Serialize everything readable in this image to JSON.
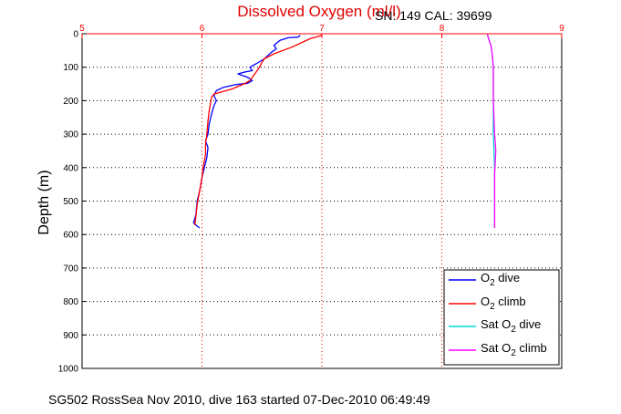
{
  "header": {
    "title": "Dissolved Oxygen (ml/l)",
    "title_color": "#e00000",
    "sn_cal": "SN: 149  CAL: 39699"
  },
  "footer": {
    "caption": "SG502 RossSea Nov 2010, dive 163 started 07-Dec-2010 06:49:49"
  },
  "chart_data": {
    "type": "line",
    "title": "Dissolved Oxygen (ml/l)",
    "ylabel": "Depth (m)",
    "xlim": [
      5,
      9
    ],
    "ylim": [
      0,
      1000
    ],
    "y_reversed": true,
    "x_axis_position": "top",
    "x_ticks": [
      5,
      6,
      7,
      8,
      9
    ],
    "y_ticks": [
      0,
      100,
      200,
      300,
      400,
      500,
      600,
      700,
      800,
      900,
      1000
    ],
    "grid": true,
    "legend_position": "bottom-right",
    "series": [
      {
        "name": "O2 dive",
        "legend_main": "O",
        "legend_sub": "2",
        "legend_suffix": " dive",
        "color": "#0000ff",
        "points": [
          [
            6.82,
            5
          ],
          [
            6.8,
            10
          ],
          [
            6.72,
            12
          ],
          [
            6.65,
            20
          ],
          [
            6.6,
            35
          ],
          [
            6.62,
            45
          ],
          [
            6.58,
            55
          ],
          [
            6.52,
            75
          ],
          [
            6.45,
            90
          ],
          [
            6.4,
            100
          ],
          [
            6.42,
            110
          ],
          [
            6.35,
            115
          ],
          [
            6.3,
            120
          ],
          [
            6.38,
            130
          ],
          [
            6.42,
            140
          ],
          [
            6.38,
            148
          ],
          [
            6.28,
            152
          ],
          [
            6.18,
            160
          ],
          [
            6.12,
            170
          ],
          [
            6.1,
            185
          ],
          [
            6.12,
            200
          ],
          [
            6.1,
            215
          ],
          [
            6.08,
            240
          ],
          [
            6.06,
            270
          ],
          [
            6.05,
            300
          ],
          [
            6.03,
            320
          ],
          [
            6.05,
            340
          ],
          [
            6.04,
            370
          ],
          [
            6.02,
            400
          ],
          [
            6.0,
            430
          ],
          [
            5.98,
            470
          ],
          [
            5.96,
            500
          ],
          [
            5.95,
            540
          ],
          [
            5.93,
            565
          ],
          [
            5.96,
            575
          ],
          [
            5.98,
            580
          ]
        ]
      },
      {
        "name": "O2 climb",
        "legend_main": "O",
        "legend_sub": "2",
        "legend_suffix": " climb",
        "color": "#ff0000",
        "points": [
          [
            5.94,
            572
          ],
          [
            5.95,
            545
          ],
          [
            5.96,
            510
          ],
          [
            5.98,
            470
          ],
          [
            6.0,
            430
          ],
          [
            6.01,
            400
          ],
          [
            6.03,
            360
          ],
          [
            6.03,
            330
          ],
          [
            6.04,
            300
          ],
          [
            6.05,
            260
          ],
          [
            6.06,
            230
          ],
          [
            6.07,
            210
          ],
          [
            6.08,
            190
          ],
          [
            6.1,
            180
          ],
          [
            6.15,
            175
          ],
          [
            6.25,
            165
          ],
          [
            6.35,
            150
          ],
          [
            6.4,
            140
          ],
          [
            6.45,
            115
          ],
          [
            6.48,
            100
          ],
          [
            6.5,
            85
          ],
          [
            6.52,
            75
          ],
          [
            6.6,
            60
          ],
          [
            6.75,
            40
          ],
          [
            6.9,
            15
          ],
          [
            7.0,
            5
          ]
        ]
      },
      {
        "name": "Sat O2 dive",
        "legend_main": "Sat O",
        "legend_sub": "2",
        "legend_suffix": " dive",
        "color": "#00d8d8",
        "points": [
          [
            8.38,
            2
          ],
          [
            8.39,
            15
          ],
          [
            8.41,
            35
          ],
          [
            8.42,
            60
          ],
          [
            8.43,
            100
          ],
          [
            8.43,
            200
          ],
          [
            8.43,
            300
          ],
          [
            8.44,
            400
          ],
          [
            8.44,
            500
          ],
          [
            8.44,
            580
          ]
        ]
      },
      {
        "name": "Sat O2 climb",
        "legend_main": "Sat O",
        "legend_sub": "2",
        "legend_suffix": " climb",
        "color": "#ff00ff",
        "points": [
          [
            8.44,
            580
          ],
          [
            8.44,
            500
          ],
          [
            8.44,
            420
          ],
          [
            8.45,
            350
          ],
          [
            8.44,
            300
          ],
          [
            8.43,
            200
          ],
          [
            8.43,
            100
          ],
          [
            8.42,
            60
          ],
          [
            8.41,
            35
          ],
          [
            8.39,
            15
          ],
          [
            8.38,
            2
          ]
        ]
      }
    ]
  }
}
